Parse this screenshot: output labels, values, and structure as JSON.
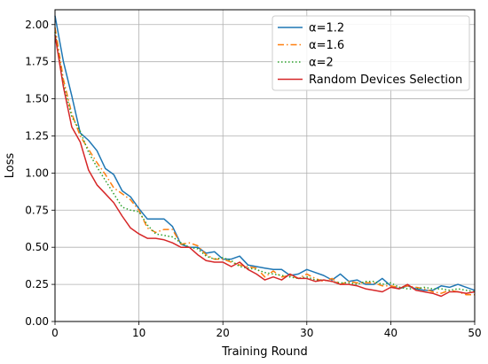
{
  "chart_data": {
    "type": "line",
    "title": "",
    "xlabel": "Training Round",
    "ylabel": "Loss",
    "xlim": [
      0,
      50
    ],
    "ylim": [
      0,
      2.1
    ],
    "x_ticks": [
      0,
      10,
      20,
      30,
      40,
      50
    ],
    "y_ticks": [
      0.0,
      0.25,
      0.5,
      0.75,
      1.0,
      1.25,
      1.5,
      1.75,
      2.0
    ],
    "x_tick_labels": [
      "0",
      "10",
      "20",
      "30",
      "40",
      "50"
    ],
    "y_tick_labels": [
      "0.00",
      "0.25",
      "0.50",
      "0.75",
      "1.00",
      "1.25",
      "1.50",
      "1.75",
      "2.00"
    ],
    "grid": true,
    "legend_position": "top-right",
    "x": [
      0,
      1,
      2,
      3,
      4,
      5,
      6,
      7,
      8,
      9,
      10,
      11,
      12,
      13,
      14,
      15,
      16,
      17,
      18,
      19,
      20,
      21,
      22,
      23,
      24,
      25,
      26,
      27,
      28,
      29,
      30,
      31,
      32,
      33,
      34,
      35,
      36,
      37,
      38,
      39,
      40,
      41,
      42,
      43,
      44,
      45,
      46,
      47,
      48,
      49,
      50
    ],
    "series": [
      {
        "name": "α=1.2",
        "color": "#1f77b4",
        "style": "solid",
        "values": [
          2.06,
          1.75,
          1.52,
          1.27,
          1.22,
          1.15,
          1.03,
          0.99,
          0.88,
          0.84,
          0.76,
          0.69,
          0.69,
          0.69,
          0.64,
          0.52,
          0.5,
          0.5,
          0.46,
          0.47,
          0.42,
          0.42,
          0.44,
          0.38,
          0.37,
          0.36,
          0.35,
          0.35,
          0.31,
          0.32,
          0.35,
          0.33,
          0.31,
          0.28,
          0.32,
          0.27,
          0.28,
          0.25,
          0.25,
          0.29,
          0.24,
          0.22,
          0.24,
          0.22,
          0.21,
          0.21,
          0.24,
          0.23,
          0.25,
          0.23,
          0.21
        ]
      },
      {
        "name": "α=1.6",
        "color": "#ff7f0e",
        "style": "dashdot",
        "values": [
          1.98,
          1.63,
          1.4,
          1.25,
          1.16,
          1.07,
          0.99,
          0.9,
          0.86,
          0.82,
          0.75,
          0.63,
          0.6,
          0.62,
          0.62,
          0.52,
          0.53,
          0.51,
          0.45,
          0.42,
          0.42,
          0.4,
          0.38,
          0.37,
          0.36,
          0.3,
          0.34,
          0.3,
          0.31,
          0.29,
          0.32,
          0.29,
          0.27,
          0.29,
          0.25,
          0.27,
          0.26,
          0.26,
          0.26,
          0.24,
          0.24,
          0.23,
          0.24,
          0.23,
          0.22,
          0.2,
          0.19,
          0.21,
          0.2,
          0.18,
          0.18
        ]
      },
      {
        "name": "α=2",
        "color": "#2ca02c",
        "style": "dotted",
        "values": [
          1.95,
          1.6,
          1.38,
          1.28,
          1.14,
          1.04,
          0.95,
          0.86,
          0.77,
          0.75,
          0.74,
          0.65,
          0.59,
          0.58,
          0.57,
          0.53,
          0.5,
          0.49,
          0.44,
          0.42,
          0.43,
          0.41,
          0.37,
          0.36,
          0.35,
          0.33,
          0.32,
          0.31,
          0.3,
          0.29,
          0.3,
          0.28,
          0.28,
          0.27,
          0.26,
          0.26,
          0.25,
          0.27,
          0.27,
          0.25,
          0.26,
          0.23,
          0.22,
          0.22,
          0.23,
          0.22,
          0.22,
          0.21,
          0.22,
          0.21,
          0.2
        ]
      },
      {
        "name": "Random Devices Selection",
        "color": "#d62728",
        "style": "solid",
        "values": [
          1.93,
          1.58,
          1.31,
          1.21,
          1.02,
          0.92,
          0.86,
          0.8,
          0.71,
          0.63,
          0.59,
          0.56,
          0.56,
          0.55,
          0.53,
          0.5,
          0.5,
          0.45,
          0.41,
          0.4,
          0.4,
          0.37,
          0.4,
          0.35,
          0.32,
          0.28,
          0.3,
          0.28,
          0.32,
          0.29,
          0.29,
          0.27,
          0.28,
          0.27,
          0.25,
          0.25,
          0.24,
          0.22,
          0.21,
          0.2,
          0.23,
          0.22,
          0.25,
          0.21,
          0.2,
          0.19,
          0.17,
          0.2,
          0.2,
          0.19,
          0.2
        ]
      }
    ]
  }
}
